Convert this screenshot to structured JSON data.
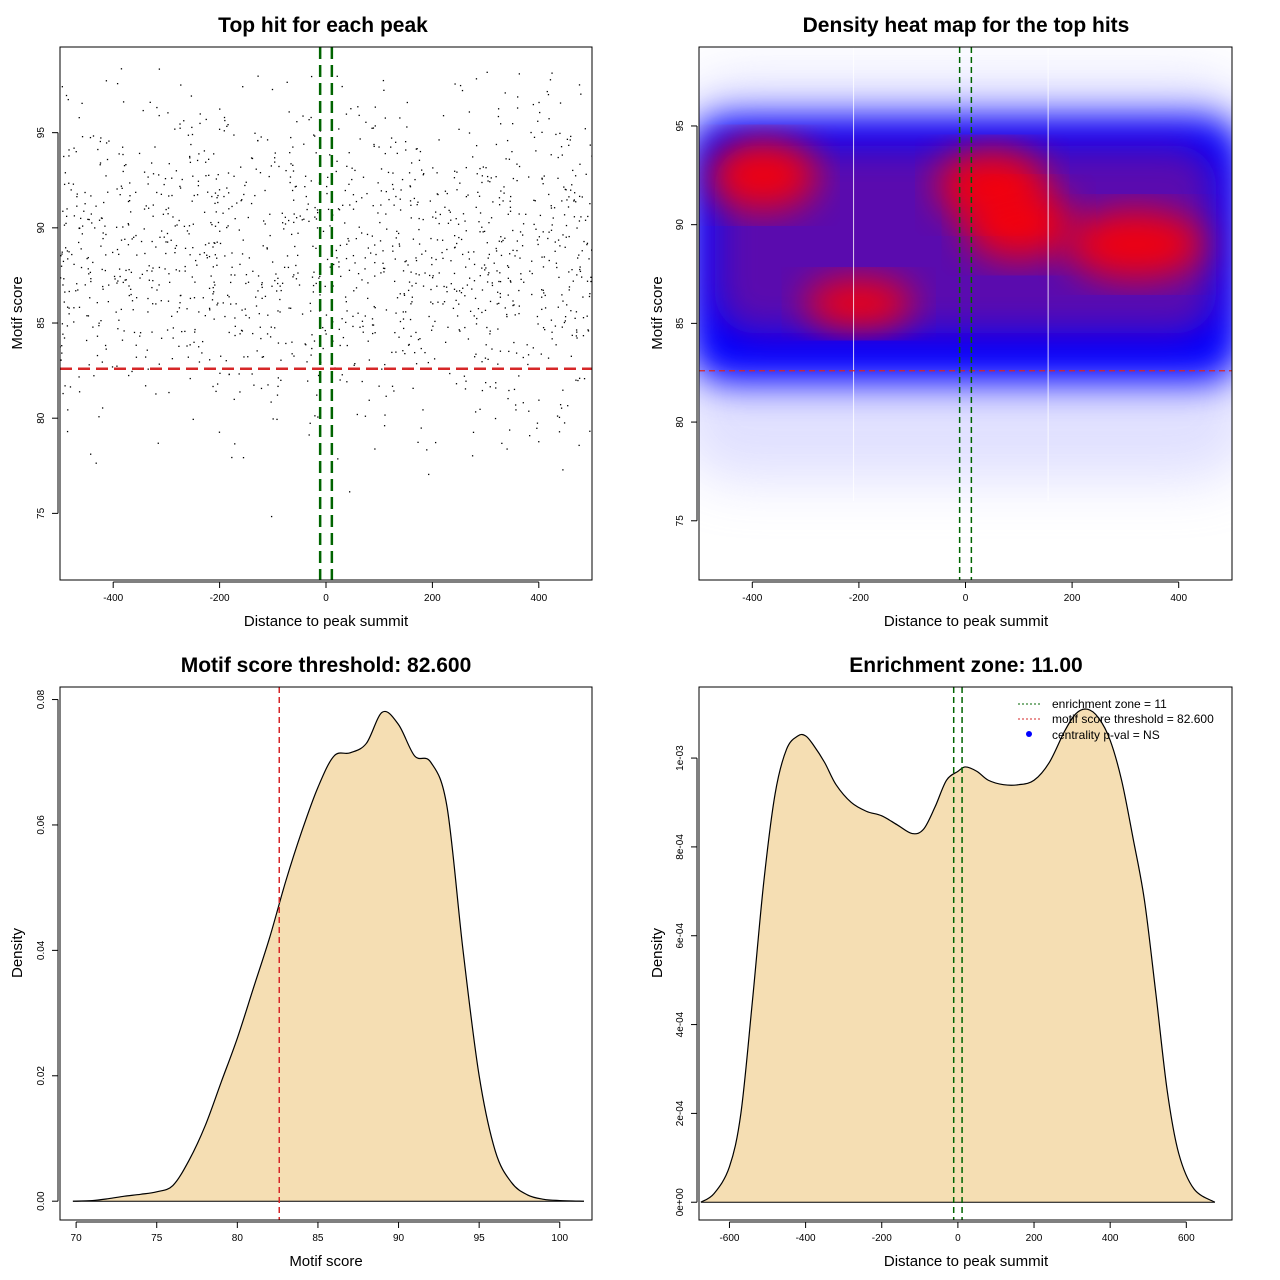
{
  "colors": {
    "points": "#000000",
    "threshold": "#d62728",
    "zone": "#006400",
    "fill": "#f5deb3",
    "heat_low": "#ffffff",
    "heat_mid": "#0000ff",
    "heat_high": "#ff0000",
    "legend_point": "#0000ff"
  },
  "chart_data": [
    {
      "id": "scatter",
      "type": "scatter",
      "title": "Top hit for each peak",
      "xlabel": "Distance to peak summit",
      "ylabel": "Motif score",
      "xlim": [
        -500,
        500
      ],
      "ylim": [
        71.5,
        99.5
      ],
      "xticks": [
        -400,
        -200,
        0,
        200,
        400
      ],
      "xtick_labels": [
        "-400",
        "-200",
        "0",
        "200",
        "400"
      ],
      "yticks": [
        75,
        80,
        85,
        90,
        95
      ],
      "ytick_labels": [
        "75",
        "80",
        "85",
        "90",
        "95"
      ],
      "threshold_y": 82.6,
      "zone_x": [
        -11,
        11
      ],
      "n_points": 1400,
      "score_range": [
        74.5,
        98.5
      ],
      "distance_range": [
        -500,
        500
      ],
      "grid": false
    },
    {
      "id": "heatmap",
      "type": "heatmap",
      "title": "Density heat map for the top hits",
      "xlabel": "Distance to peak summit",
      "ylabel": "Motif score",
      "xlim": [
        -500,
        500
      ],
      "ylim": [
        72,
        99
      ],
      "xticks": [
        -400,
        -200,
        0,
        200,
        400
      ],
      "xtick_labels": [
        "-400",
        "-200",
        "0",
        "200",
        "400"
      ],
      "yticks": [
        75,
        80,
        85,
        90,
        95
      ],
      "ytick_labels": [
        "75",
        "80",
        "85",
        "90",
        "95"
      ],
      "threshold_y": 82.6,
      "zone_x": [
        -11,
        11
      ],
      "density_peaks": [
        {
          "x": -380,
          "y": 92.5
        },
        {
          "x": 50,
          "y": 92
        },
        {
          "x": 100,
          "y": 90
        },
        {
          "x": 320,
          "y": 89
        },
        {
          "x": -200,
          "y": 86
        }
      ],
      "grid": false
    },
    {
      "id": "score_density",
      "type": "area",
      "title": "Motif score threshold: 82.600",
      "xlabel": "Motif score",
      "ylabel": "Density",
      "xlim": [
        69,
        102
      ],
      "ylim": [
        -0.003,
        0.082
      ],
      "xticks": [
        70,
        75,
        80,
        85,
        90,
        95,
        100
      ],
      "xtick_labels": [
        "70",
        "75",
        "80",
        "85",
        "90",
        "95",
        "100"
      ],
      "yticks": [
        0,
        0.02,
        0.04,
        0.06,
        0.08
      ],
      "ytick_labels": [
        "0.00",
        "0.02",
        "0.04",
        "0.06",
        "0.08"
      ],
      "threshold_x": 82.6,
      "x": [
        69.8,
        71,
        72,
        73,
        74,
        75,
        76,
        77,
        78,
        79,
        80,
        81,
        82,
        83,
        84,
        85,
        86,
        87,
        88,
        89,
        90,
        91,
        92,
        93,
        94,
        95,
        96,
        97,
        98,
        99,
        100,
        101.5
      ],
      "y": [
        0,
        0.0001,
        0.0004,
        0.0008,
        0.0011,
        0.0015,
        0.0025,
        0.0065,
        0.012,
        0.019,
        0.026,
        0.034,
        0.042,
        0.051,
        0.059,
        0.066,
        0.071,
        0.0715,
        0.073,
        0.078,
        0.076,
        0.071,
        0.07,
        0.063,
        0.04,
        0.02,
        0.008,
        0.003,
        0.001,
        0.0003,
        0.0001,
        0
      ],
      "grid": false
    },
    {
      "id": "distance_density",
      "type": "area",
      "title": "Enrichment zone: 11.00",
      "xlabel": "Distance to peak summit",
      "ylabel": "Density",
      "xlim": [
        -680,
        720
      ],
      "ylim": [
        -4e-05,
        0.00116
      ],
      "xticks": [
        -600,
        -400,
        -200,
        0,
        200,
        400,
        600
      ],
      "xtick_labels": [
        "-600",
        "-400",
        "-200",
        "0",
        "200",
        "400",
        "600"
      ],
      "yticks": [
        0,
        0.0002,
        0.0004,
        0.0006,
        0.0008,
        0.001
      ],
      "ytick_labels": [
        "0e+00",
        "2e-04",
        "4e-04",
        "6e-04",
        "8e-04",
        "1e-03"
      ],
      "zone_x": [
        -11,
        11
      ],
      "x": [
        -675,
        -640,
        -600,
        -570,
        -540,
        -510,
        -480,
        -450,
        -420,
        -400,
        -380,
        -350,
        -320,
        -280,
        -240,
        -200,
        -160,
        -120,
        -90,
        -60,
        -30,
        0,
        20,
        50,
        80,
        120,
        160,
        200,
        240,
        280,
        310,
        340,
        370,
        400,
        430,
        460,
        490,
        520,
        550,
        580,
        620,
        675
      ],
      "y": [
        0,
        2e-05,
        8e-05,
        0.0002,
        0.00045,
        0.00072,
        0.00092,
        0.00102,
        0.00105,
        0.00105,
        0.00103,
        0.00099,
        0.00094,
        0.0009,
        0.00088,
        0.00087,
        0.00085,
        0.00083,
        0.00084,
        0.00089,
        0.00095,
        0.00097,
        0.00098,
        0.00097,
        0.00095,
        0.00094,
        0.00094,
        0.00095,
        0.00099,
        0.00106,
        0.0011,
        0.00111,
        0.00109,
        0.00104,
        0.00095,
        0.00082,
        0.00068,
        0.00047,
        0.00025,
        0.00011,
        3e-05,
        0
      ],
      "legend": {
        "placement": "top-right",
        "entries": [
          {
            "label": "enrichment zone = 11",
            "style": "dotted-line",
            "color": "#006400"
          },
          {
            "label": "motif score threshold = 82.600",
            "style": "dotted-line",
            "color": "#d62728"
          },
          {
            "label": "centrality p-val = NS",
            "style": "point",
            "color": "#0000ff"
          }
        ]
      },
      "grid": false
    }
  ]
}
